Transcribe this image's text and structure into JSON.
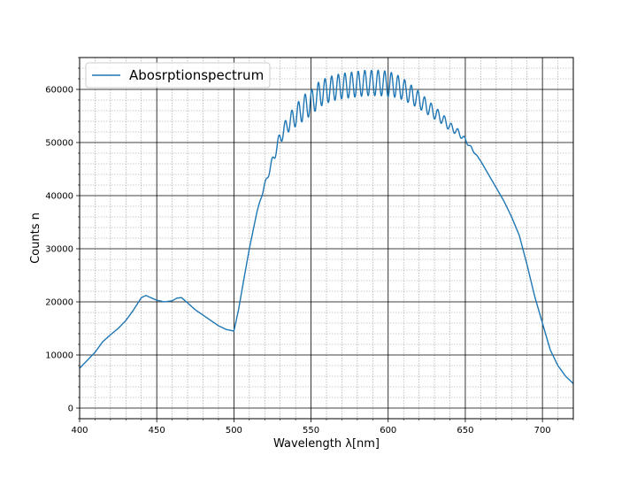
{
  "chart_data": {
    "type": "line",
    "title": "",
    "xlabel": "Wavelength λ[nm]",
    "ylabel": "Counts n",
    "xlim": [
      400,
      720
    ],
    "ylim": [
      -2000,
      66000
    ],
    "xticks": [
      400,
      450,
      500,
      550,
      600,
      650,
      700
    ],
    "yticks": [
      0,
      10000,
      20000,
      30000,
      40000,
      50000,
      60000
    ],
    "grid": {
      "major": true,
      "minor": true
    },
    "legend_position": "upper-left",
    "series": [
      {
        "name": "Abosrptionspectrum",
        "color": "#1f77b4",
        "x": [
          400,
          405,
          410,
          415,
          420,
          425,
          430,
          435,
          440,
          443,
          446,
          450,
          455,
          460,
          463,
          466,
          470,
          475,
          480,
          485,
          490,
          495,
          500,
          503,
          506,
          510,
          515,
          520,
          525,
          530,
          535,
          540,
          545,
          550,
          555,
          560,
          565,
          570,
          575,
          580,
          585,
          590,
          595,
          600,
          605,
          610,
          615,
          620,
          625,
          630,
          635,
          640,
          645,
          650,
          655,
          660,
          665,
          670,
          675,
          680,
          685,
          690,
          695,
          700,
          705,
          710,
          715,
          720
        ],
        "y": [
          7500,
          9000,
          10500,
          12500,
          13800,
          15000,
          16500,
          18500,
          20800,
          21200,
          20800,
          20300,
          20000,
          20200,
          20700,
          20800,
          19800,
          18500,
          17500,
          16500,
          15500,
          14800,
          14500,
          18500,
          23500,
          30000,
          37000,
          42000,
          46500,
          51000,
          53500,
          55000,
          56500,
          57500,
          59000,
          59800,
          60300,
          60600,
          60800,
          61000,
          61200,
          61200,
          61200,
          61000,
          60700,
          60000,
          59000,
          58000,
          56800,
          55600,
          54500,
          53000,
          52000,
          50500,
          48500,
          46500,
          44000,
          41500,
          39000,
          36000,
          32500,
          27000,
          21000,
          16000,
          11000,
          8000,
          6000,
          4600
        ]
      }
    ]
  }
}
